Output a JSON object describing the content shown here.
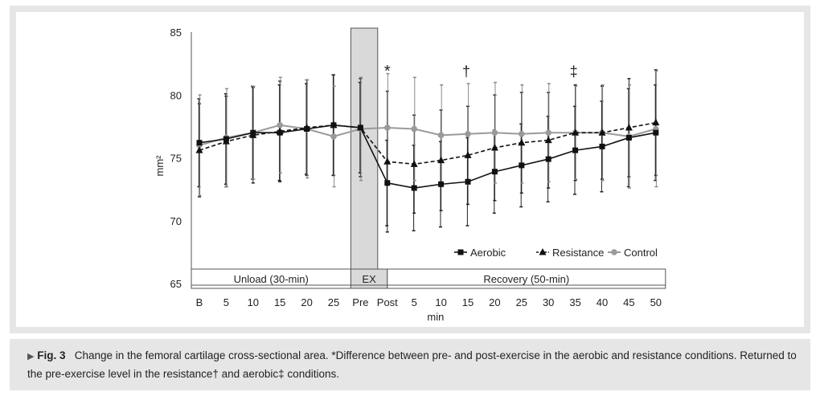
{
  "chart_data": {
    "type": "line",
    "title": "",
    "xlabel": "min",
    "ylabel": "mm²",
    "ylim": [
      65,
      85
    ],
    "yticks": [
      65,
      70,
      75,
      80,
      85
    ],
    "categories": [
      "B",
      "5",
      "10",
      "15",
      "20",
      "25",
      "Pre",
      "Post",
      "5",
      "10",
      "15",
      "20",
      "25",
      "30",
      "35",
      "40",
      "45",
      "50"
    ],
    "series": [
      {
        "name": "Aerobic",
        "style": "solid-black-square",
        "values": [
          76.2,
          76.5,
          77.0,
          77.0,
          77.3,
          77.6,
          77.4,
          73.0,
          72.6,
          72.9,
          73.1,
          73.9,
          74.4,
          74.9,
          75.6,
          75.9,
          76.6,
          77.0
        ],
        "sd": [
          3.5,
          3.6,
          3.7,
          3.8,
          3.6,
          4.0,
          3.6,
          3.4,
          3.4,
          3.4,
          3.5,
          3.3,
          3.3,
          3.4,
          3.5,
          3.6,
          3.9,
          3.8
        ]
      },
      {
        "name": "Resistance",
        "style": "dashed-black-triangle",
        "values": [
          75.6,
          76.3,
          76.8,
          77.1,
          77.4,
          77.6,
          77.4,
          74.7,
          74.5,
          74.8,
          75.2,
          75.8,
          76.2,
          76.4,
          77.0,
          77.0,
          77.4,
          77.8
        ],
        "sd": [
          3.7,
          3.6,
          3.8,
          4.0,
          3.8,
          4.0,
          3.9,
          5.6,
          3.9,
          4.0,
          3.9,
          4.2,
          4.0,
          3.8,
          3.8,
          3.7,
          3.9,
          4.2
        ]
      },
      {
        "name": "Control",
        "style": "solid-gray-circle",
        "values": [
          76.0,
          76.6,
          77.0,
          77.6,
          77.3,
          76.7,
          77.3,
          77.4,
          77.3,
          76.8,
          76.9,
          77.0,
          76.9,
          77.0,
          77.0,
          77.0,
          76.7,
          77.3
        ],
        "sd": [
          4.0,
          3.9,
          3.7,
          3.8,
          3.9,
          4.0,
          4.1,
          4.3,
          4.1,
          4.0,
          4.0,
          4.0,
          3.9,
          3.9,
          3.7,
          3.8,
          4.1,
          4.6
        ]
      }
    ],
    "annotations": [
      {
        "text": "*",
        "category_index": 7
      },
      {
        "text": "†",
        "category_index": 10
      },
      {
        "text": "‡",
        "category_index": 14
      }
    ],
    "phases": [
      {
        "label": "Unload (30-min)",
        "from_index": 0,
        "to_index": 6
      },
      {
        "label": "EX",
        "from_index": 6,
        "to_index": 7
      },
      {
        "label": "Recovery (50-min)",
        "from_index": 7,
        "to_index": 17
      }
    ],
    "legend_position": "bottom-right",
    "grid": false
  },
  "caption": {
    "marker": "▶",
    "label": "Fig. 3",
    "text": "Change in the femoral cartilage cross-sectional area. *Difference between pre- and post-exercise in the aerobic and resistance conditions. Returned to the pre-exercise level in the resistance† and aerobic‡ conditions."
  }
}
